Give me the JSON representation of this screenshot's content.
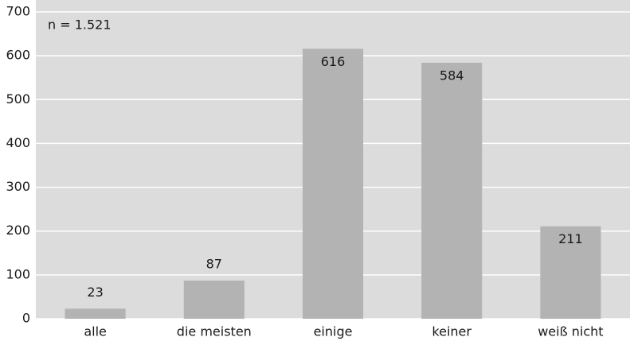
{
  "chart_data": {
    "type": "bar",
    "annotation": "n = 1.521",
    "categories": [
      "alle",
      "die meisten",
      "einige",
      "keiner",
      "weiß nicht"
    ],
    "values": [
      23,
      87,
      616,
      584,
      211
    ],
    "color": "#b3b3b3",
    "ylim": [
      0,
      700
    ],
    "yticks": [
      0,
      100,
      200,
      300,
      400,
      500,
      600,
      700
    ],
    "grid": true
  }
}
